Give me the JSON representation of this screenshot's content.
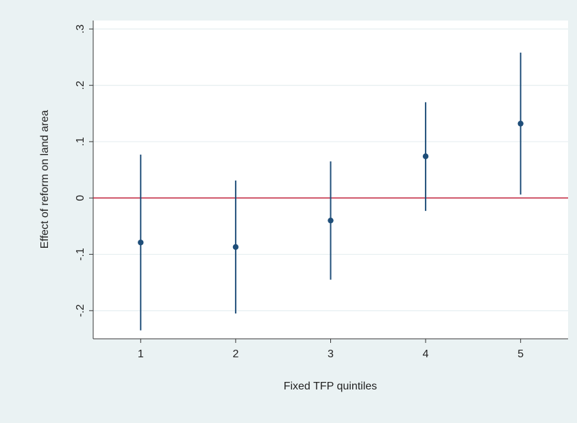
{
  "chart_data": {
    "type": "scatter",
    "title": "",
    "xlabel": "Fixed TFP quintiles",
    "ylabel": "Effect of reform on land area",
    "x_ticks": [
      1,
      2,
      3,
      4,
      5
    ],
    "y_ticks": [
      -0.2,
      -0.1,
      0,
      0.1,
      0.2,
      0.3
    ],
    "y_tick_labels": [
      "-.2",
      "-.1",
      "0",
      ".1",
      ".2",
      ".3"
    ],
    "xlim": [
      0.5,
      5.5
    ],
    "ylim": [
      -0.25,
      0.315
    ],
    "grid": "horizontal",
    "reference_line": {
      "y": 0,
      "color": "#c0203a"
    },
    "marker_color": "#1f4e79",
    "points": [
      {
        "x": 1,
        "y": -0.079,
        "ci_low": -0.235,
        "ci_high": 0.077
      },
      {
        "x": 2,
        "y": -0.087,
        "ci_low": -0.205,
        "ci_high": 0.031
      },
      {
        "x": 3,
        "y": -0.04,
        "ci_low": -0.145,
        "ci_high": 0.065
      },
      {
        "x": 4,
        "y": 0.074,
        "ci_low": -0.023,
        "ci_high": 0.17
      },
      {
        "x": 5,
        "y": 0.132,
        "ci_low": 0.006,
        "ci_high": 0.258
      }
    ]
  }
}
